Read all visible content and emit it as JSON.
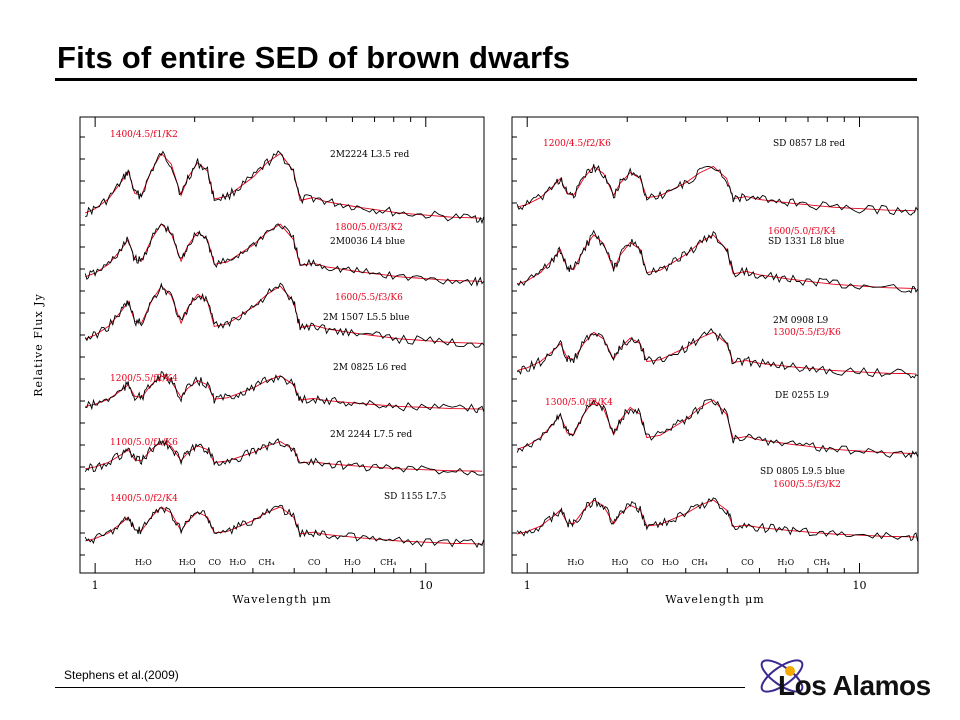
{
  "slide": {
    "title": "Fits of entire SED of brown dwarfs",
    "citation": "Stephens et al.(2009)",
    "logo_text": "Los Alamos"
  },
  "colors": {
    "observed": "#000000",
    "model": "#e8001b",
    "logo_orange": "#f2a900",
    "logo_purple": "#3b2a8f"
  },
  "chart_data": [
    {
      "type": "line",
      "panel": "left",
      "xlabel": "Wavelength μm",
      "ylabel": "Relative Flux Jy",
      "xscale": "log",
      "xlim": [
        0.9,
        15
      ],
      "xticks": [
        1,
        10
      ],
      "xtick_labels": [
        "1",
        "10"
      ],
      "band_labels": [
        {
          "text": "H₂O",
          "x": 1.4
        },
        {
          "text": "H₂O",
          "x": 1.9
        },
        {
          "text": "CO",
          "x": 2.3
        },
        {
          "text": "H₂O",
          "x": 2.7
        },
        {
          "text": "CH₄",
          "x": 3.3
        },
        {
          "text": "CO",
          "x": 4.6
        },
        {
          "text": "H₂O",
          "x": 6.0
        },
        {
          "text": "CH₄",
          "x": 7.7
        }
      ],
      "series": [
        {
          "name": "2M2224 L3.5 red",
          "model": "1400/4.5/f1/K2"
        },
        {
          "name": "2M0036 L4 blue",
          "model": "1800/5.0/f3/K2"
        },
        {
          "name": "2M 1507 L5.5 blue",
          "model": "1600/5.5/f3/K6"
        },
        {
          "name": "2M 0825 L6 red",
          "model": "1200/5.5/f2/K4"
        },
        {
          "name": "2M 2244 L7.5 red",
          "model": "1100/5.0/f1/K6"
        },
        {
          "name": "SD 1155 L7.5",
          "model": "1400/5.0/f2/K4"
        }
      ]
    },
    {
      "type": "line",
      "panel": "right",
      "xlabel": "Wavelength μm",
      "xscale": "log",
      "xlim": [
        0.9,
        15
      ],
      "xticks": [
        1,
        10
      ],
      "xtick_labels": [
        "1",
        "10"
      ],
      "band_labels": [
        {
          "text": "H₂O",
          "x": 1.4
        },
        {
          "text": "H₂O",
          "x": 1.9
        },
        {
          "text": "CO",
          "x": 2.3
        },
        {
          "text": "H₂O",
          "x": 2.7
        },
        {
          "text": "CH₄",
          "x": 3.3
        },
        {
          "text": "CO",
          "x": 4.6
        },
        {
          "text": "H₂O",
          "x": 6.0
        },
        {
          "text": "CH₄",
          "x": 7.7
        }
      ],
      "series": [
        {
          "name": "SD 0857 L8 red",
          "model": "1200/4.5/f2/K6"
        },
        {
          "name": "SD 1331 L8 blue",
          "model": "1600/5.0/f3/K4"
        },
        {
          "name": "2M 0908 L9",
          "model": "1300/5.5/f3/K6"
        },
        {
          "name": "DE 0255 L9",
          "model": "1300/5.0/f2/K4"
        },
        {
          "name": "SD 0805 L9.5 blue",
          "model": "1600/5.5/f3/K2"
        }
      ]
    }
  ]
}
